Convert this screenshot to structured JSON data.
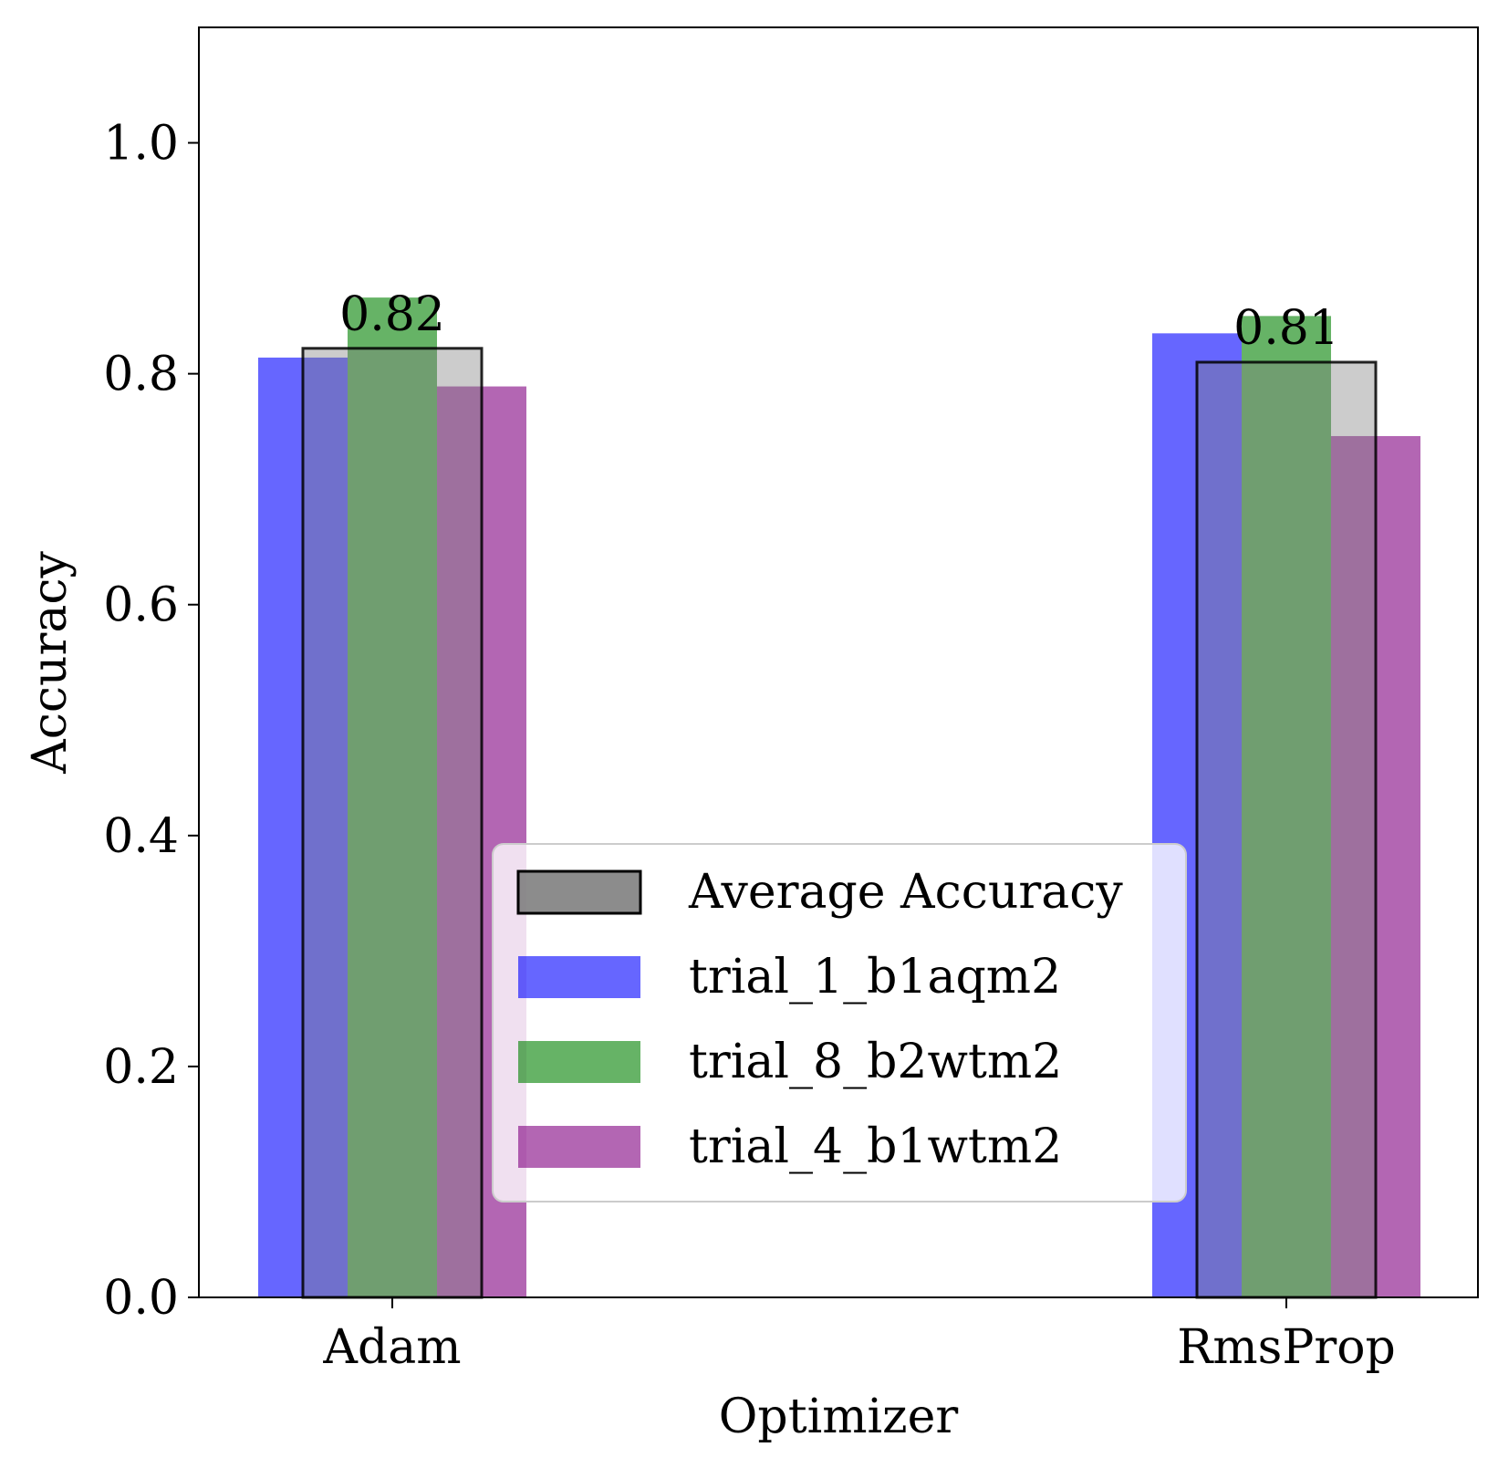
{
  "chart_data": {
    "type": "bar",
    "title": "",
    "xlabel": "Optimizer",
    "ylabel": "Accuracy",
    "ylim": [
      0,
      1.1
    ],
    "yticks": [
      0.0,
      0.2,
      0.4,
      0.6,
      0.8,
      1.0
    ],
    "ytick_labels": [
      "0.0",
      "0.2",
      "0.4",
      "0.6",
      "0.8",
      "1.0"
    ],
    "categories": [
      "Adam",
      "RmsProp"
    ],
    "grid": false,
    "legend_position": "lower-center",
    "average": {
      "name": "Average Accuracy",
      "values": [
        0.822,
        0.81
      ],
      "labels": [
        "0.82",
        "0.81"
      ],
      "color": "#808080",
      "edge_color": "#000000"
    },
    "series": [
      {
        "name": "trial_1_b1aqm2",
        "values": [
          0.814,
          0.835
        ],
        "color": "#0000ff"
      },
      {
        "name": "trial_8_b2wtm2",
        "values": [
          0.866,
          0.85
        ],
        "color": "#008000"
      },
      {
        "name": "trial_4_b1wtm2",
        "values": [
          0.789,
          0.746
        ],
        "color": "#800080"
      }
    ]
  }
}
